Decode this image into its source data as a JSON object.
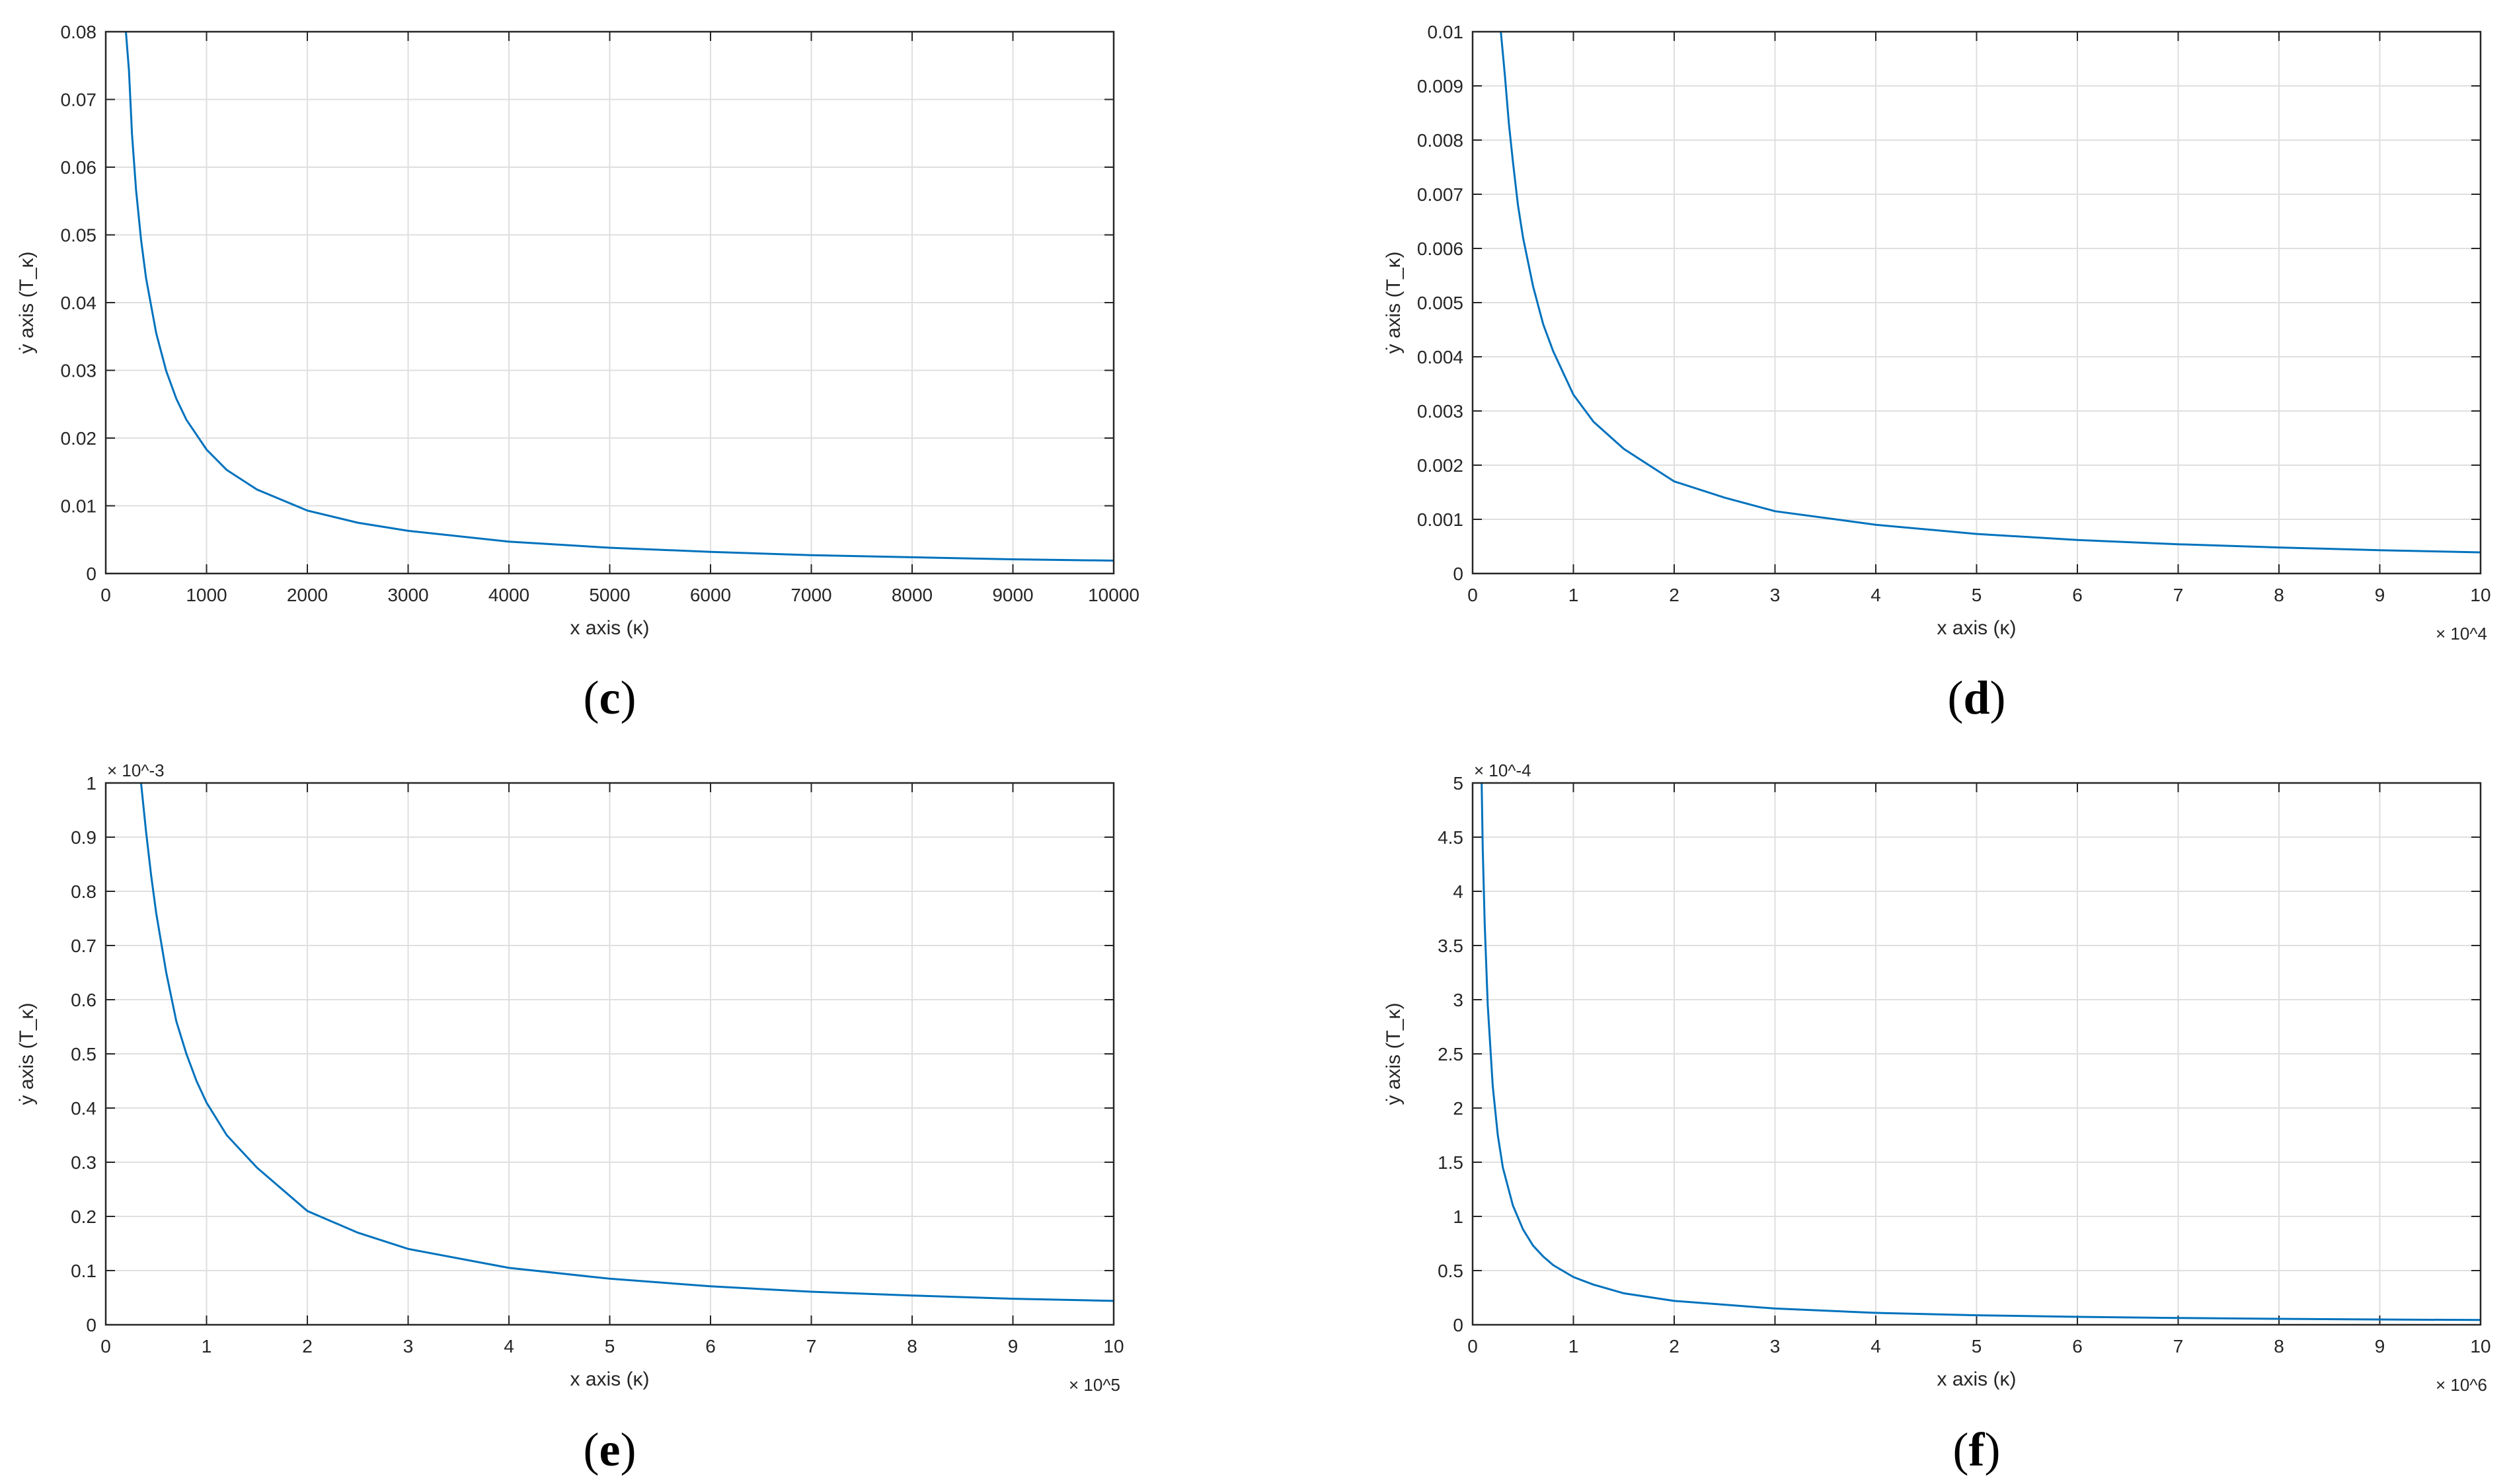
{
  "colors": {
    "series": "#0072bd",
    "axes": "#262626",
    "grid": "#dfdfdf"
  },
  "chart_data": [
    {
      "type": "line",
      "panel_label": "c",
      "xlabel": "x axis (κ)",
      "ylabel": "ẏ axis (T_κ)",
      "xlim": [
        0,
        10000
      ],
      "ylim": [
        0,
        0.08
      ],
      "grid": true,
      "x_multiplier": "",
      "y_multiplier": "",
      "xticks": [
        0,
        1000,
        2000,
        3000,
        4000,
        5000,
        6000,
        7000,
        8000,
        9000,
        10000
      ],
      "xtick_labels": [
        "0",
        "1000",
        "2000",
        "3000",
        "4000",
        "5000",
        "6000",
        "7000",
        "8000",
        "9000",
        "10000"
      ],
      "yticks": [
        0,
        0.01,
        0.02,
        0.03,
        0.04,
        0.05,
        0.06,
        0.07,
        0.08
      ],
      "ytick_labels": [
        "0",
        "0.01",
        "0.02",
        "0.03",
        "0.04",
        "0.05",
        "0.06",
        "0.07",
        "0.08"
      ],
      "series": [
        {
          "name": "T_κ",
          "x": [
            200,
            230,
            260,
            300,
            350,
            400,
            500,
            600,
            700,
            800,
            1000,
            1200,
            1500,
            2000,
            2500,
            3000,
            4000,
            5000,
            6000,
            7000,
            8000,
            9000,
            10000
          ],
          "y": [
            0.08,
            0.0743,
            0.0649,
            0.0567,
            0.0493,
            0.0436,
            0.0355,
            0.0299,
            0.0258,
            0.0227,
            0.0183,
            0.0153,
            0.0124,
            0.0093,
            0.0075,
            0.0063,
            0.0047,
            0.0038,
            0.0032,
            0.0027,
            0.0024,
            0.0021,
            0.0019
          ]
        }
      ]
    },
    {
      "type": "line",
      "panel_label": "d",
      "xlabel": "x axis (κ)",
      "ylabel": "ẏ axis (T_κ)",
      "xlim": [
        0,
        10
      ],
      "ylim": [
        0,
        0.01
      ],
      "grid": true,
      "x_multiplier": "× 10^4",
      "y_multiplier": "",
      "xticks": [
        0,
        1,
        2,
        3,
        4,
        5,
        6,
        7,
        8,
        9,
        10
      ],
      "xtick_labels": [
        "0",
        "1",
        "2",
        "3",
        "4",
        "5",
        "6",
        "7",
        "8",
        "9",
        "10"
      ],
      "yticks": [
        0,
        0.001,
        0.002,
        0.003,
        0.004,
        0.005,
        0.006,
        0.007,
        0.008,
        0.009,
        0.01
      ],
      "ytick_labels": [
        "0",
        "0.001",
        "0.002",
        "0.003",
        "0.004",
        "0.005",
        "0.006",
        "0.007",
        "0.008",
        "0.009",
        "0.01"
      ],
      "series": [
        {
          "name": "T_κ",
          "x": [
            0.28,
            0.32,
            0.36,
            0.4,
            0.45,
            0.5,
            0.6,
            0.7,
            0.8,
            1,
            1.2,
            1.5,
            2,
            2.5,
            3,
            4,
            5,
            6,
            7,
            8,
            9,
            10
          ],
          "y": [
            0.01,
            0.0092,
            0.0083,
            0.0076,
            0.0068,
            0.0062,
            0.0053,
            0.0046,
            0.0041,
            0.0033,
            0.0028,
            0.0023,
            0.0017,
            0.0014,
            0.00115,
            0.0009,
            0.00073,
            0.00062,
            0.00054,
            0.00048,
            0.00043,
            0.00039
          ]
        }
      ]
    },
    {
      "type": "line",
      "panel_label": "e",
      "xlabel": "x axis (κ)",
      "ylabel": "ẏ axis (T_κ)",
      "xlim": [
        0,
        10
      ],
      "ylim": [
        0,
        1
      ],
      "grid": true,
      "x_multiplier": "× 10^5",
      "y_multiplier": "× 10^-3",
      "xticks": [
        0,
        1,
        2,
        3,
        4,
        5,
        6,
        7,
        8,
        9,
        10
      ],
      "xtick_labels": [
        "0",
        "1",
        "2",
        "3",
        "4",
        "5",
        "6",
        "7",
        "8",
        "9",
        "10"
      ],
      "yticks": [
        0,
        0.1,
        0.2,
        0.3,
        0.4,
        0.5,
        0.6,
        0.7,
        0.8,
        0.9,
        1
      ],
      "ytick_labels": [
        "0",
        "0.1",
        "0.2",
        "0.3",
        "0.4",
        "0.5",
        "0.6",
        "0.7",
        "0.8",
        "0.9",
        "1"
      ],
      "series": [
        {
          "name": "T_κ",
          "x": [
            0.35,
            0.4,
            0.45,
            0.5,
            0.6,
            0.7,
            0.8,
            0.9,
            1,
            1.2,
            1.5,
            2,
            2.5,
            3,
            4,
            5,
            6,
            7,
            8,
            9,
            10
          ],
          "y": [
            1.0,
            0.91,
            0.83,
            0.76,
            0.65,
            0.56,
            0.5,
            0.45,
            0.41,
            0.35,
            0.29,
            0.21,
            0.17,
            0.14,
            0.105,
            0.085,
            0.071,
            0.061,
            0.054,
            0.048,
            0.044
          ]
        }
      ]
    },
    {
      "type": "line",
      "panel_label": "f",
      "xlabel": "x axis (κ)",
      "ylabel": "ẏ axis (T_κ)",
      "xlim": [
        0,
        10
      ],
      "ylim": [
        0,
        5
      ],
      "grid": true,
      "x_multiplier": "× 10^6",
      "y_multiplier": "× 10^-4",
      "xticks": [
        0,
        1,
        2,
        3,
        4,
        5,
        6,
        7,
        8,
        9,
        10
      ],
      "xtick_labels": [
        "0",
        "1",
        "2",
        "3",
        "4",
        "5",
        "6",
        "7",
        "8",
        "9",
        "10"
      ],
      "yticks": [
        0,
        0.5,
        1,
        1.5,
        2,
        2.5,
        3,
        3.5,
        4,
        4.5,
        5
      ],
      "ytick_labels": [
        "0",
        "0.5",
        "1",
        "1.5",
        "2",
        "2.5",
        "3",
        "3.5",
        "4",
        "4.5",
        "5"
      ],
      "series": [
        {
          "name": "T_κ",
          "x": [
            0.09,
            0.1,
            0.12,
            0.15,
            0.2,
            0.25,
            0.3,
            0.4,
            0.5,
            0.6,
            0.7,
            0.8,
            1,
            1.2,
            1.5,
            2,
            3,
            4,
            5,
            6,
            7,
            8,
            9,
            10
          ],
          "y": [
            5.0,
            4.4,
            3.7,
            2.95,
            2.2,
            1.75,
            1.45,
            1.1,
            0.88,
            0.73,
            0.63,
            0.55,
            0.44,
            0.37,
            0.29,
            0.22,
            0.15,
            0.11,
            0.088,
            0.073,
            0.063,
            0.055,
            0.049,
            0.044
          ]
        }
      ]
    }
  ]
}
